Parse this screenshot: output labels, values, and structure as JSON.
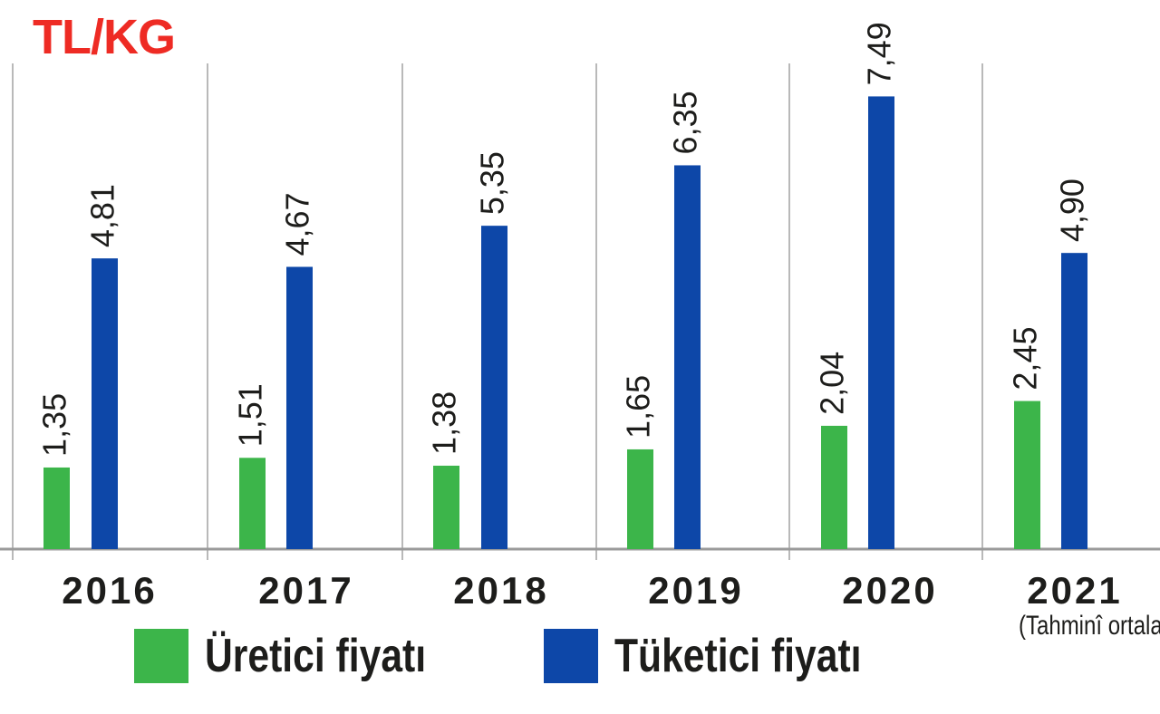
{
  "chart_data": {
    "type": "bar",
    "title": "TL/KG",
    "categories": [
      "2016",
      "2017",
      "2018",
      "2019",
      "2020",
      "2021"
    ],
    "category_note": "(Tahminî ortalama)",
    "series": [
      {
        "name": "Üretici fiyatı",
        "color": "#3cb54a",
        "values": [
          1.35,
          1.51,
          1.38,
          1.65,
          2.04,
          2.45
        ],
        "labels": [
          "1,35",
          "1,51",
          "1,38",
          "1,65",
          "2,04",
          "2,45"
        ]
      },
      {
        "name": "Tüketici fiyatı",
        "color": "#0d47a8",
        "values": [
          4.81,
          4.67,
          5.35,
          6.35,
          7.49,
          4.9
        ],
        "labels": [
          "4,81",
          "4,67",
          "5,35",
          "6,35",
          "7,49",
          "4,90"
        ]
      }
    ],
    "ylim": [
      0,
      8
    ],
    "grid": "vertical separators",
    "legend": "bottom"
  }
}
